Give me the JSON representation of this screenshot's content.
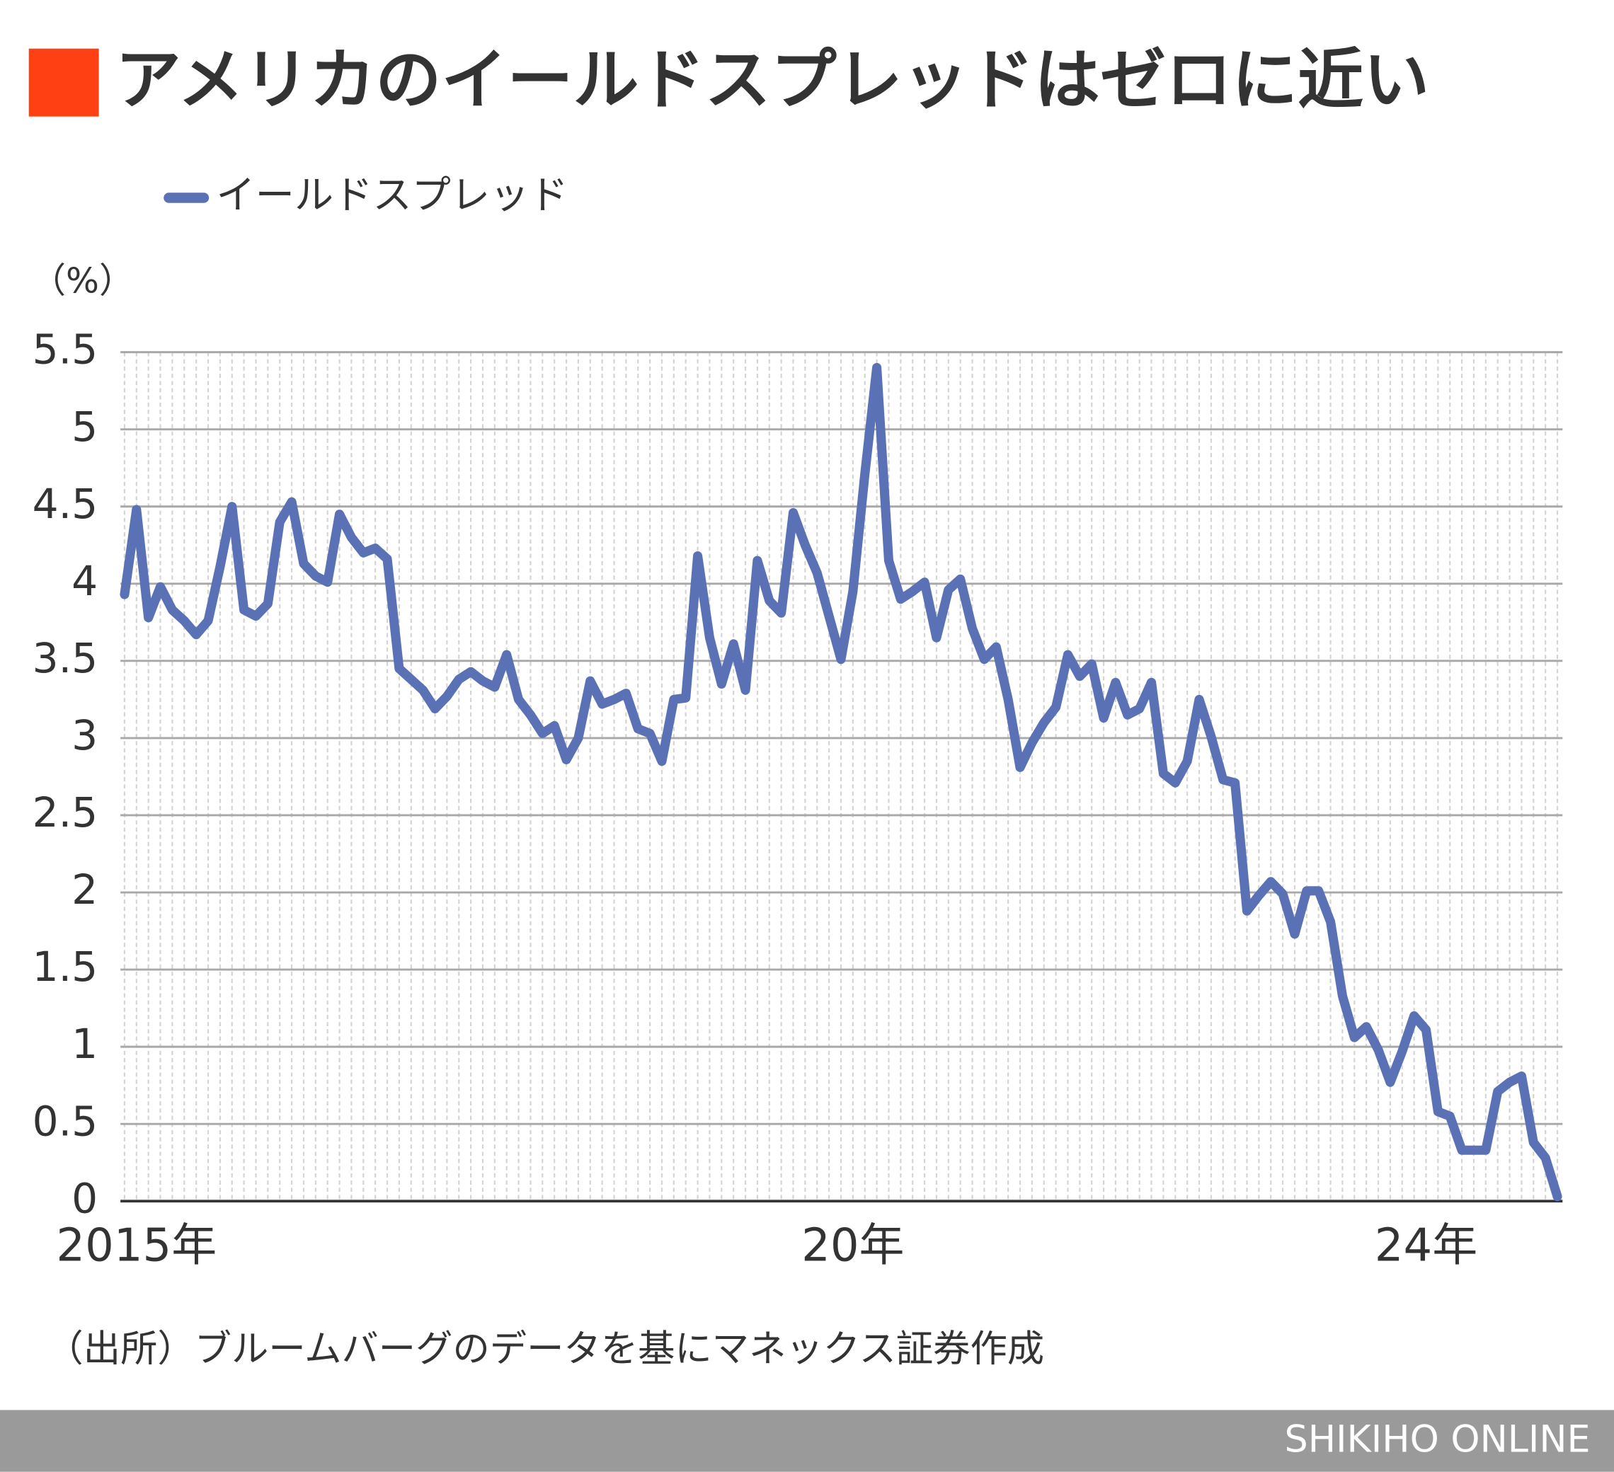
{
  "chart_data": {
    "type": "line",
    "title": "アメリカのイールドスプレッドはゼロに近い",
    "y_label": "（%）",
    "source": "（出所）ブルームバーグのデータを基にマネックス証券作成",
    "footer": "SHIKIHO ONLINE",
    "legend": "top-left",
    "grid": true,
    "ylim": [
      0,
      5.5
    ],
    "yticks": [
      0,
      0.5,
      1,
      1.5,
      2,
      2.5,
      3,
      3.5,
      4,
      4.5,
      5,
      5.5
    ],
    "categories": [
      null,
      "2015年",
      null,
      null,
      null,
      null,
      null,
      null,
      null,
      null,
      null,
      null,
      null,
      null,
      null,
      null,
      null,
      null,
      null,
      null,
      null,
      null,
      null,
      null,
      null,
      null,
      null,
      null,
      null,
      null,
      null,
      null,
      null,
      null,
      null,
      null,
      null,
      null,
      null,
      null,
      null,
      null,
      null,
      null,
      null,
      null,
      null,
      null,
      null,
      null,
      null,
      null,
      null,
      null,
      null,
      null,
      null,
      null,
      null,
      null,
      null,
      "20年",
      null,
      null,
      null,
      null,
      null,
      null,
      null,
      null,
      null,
      null,
      null,
      null,
      null,
      null,
      null,
      null,
      null,
      null,
      null,
      null,
      null,
      null,
      null,
      null,
      null,
      null,
      null,
      null,
      null,
      null,
      null,
      null,
      null,
      null,
      null,
      null,
      null,
      null,
      null,
      null,
      null,
      null,
      null,
      null,
      null,
      null,
      null,
      "24年",
      null,
      null,
      null,
      null,
      null,
      null,
      null,
      null,
      null,
      null,
      null
    ],
    "series": [
      {
        "name": "イールドスプレッド",
        "color": "#5a72b5",
        "values": [
          3.93,
          4.48,
          3.78,
          3.98,
          3.83,
          3.76,
          3.67,
          3.76,
          4.11,
          4.5,
          3.83,
          3.79,
          3.87,
          4.4,
          4.53,
          4.13,
          4.05,
          4.01,
          4.45,
          4.3,
          4.2,
          4.23,
          4.16,
          3.45,
          3.38,
          3.31,
          3.19,
          3.27,
          3.38,
          3.43,
          3.37,
          3.33,
          3.54,
          3.25,
          3.15,
          3.03,
          3.08,
          2.86,
          3.0,
          3.37,
          3.22,
          3.25,
          3.29,
          3.06,
          3.03,
          2.85,
          3.25,
          3.26,
          4.18,
          3.65,
          3.35,
          3.61,
          3.31,
          4.15,
          3.89,
          3.81,
          4.46,
          4.25,
          4.07,
          3.79,
          3.51,
          3.95,
          4.71,
          5.4,
          4.15,
          3.9,
          3.95,
          4.01,
          3.65,
          3.96,
          4.03,
          3.71,
          3.51,
          3.59,
          3.25,
          2.81,
          2.97,
          3.1,
          3.2,
          3.54,
          3.4,
          3.48,
          3.13,
          3.36,
          3.15,
          3.19,
          3.36,
          2.77,
          2.71,
          2.85,
          3.25,
          3.01,
          2.73,
          2.71,
          1.88,
          1.98,
          2.07,
          1.99,
          1.73,
          2.01,
          2.01,
          1.81,
          1.33,
          1.06,
          1.13,
          0.98,
          0.77,
          0.97,
          1.2,
          1.11,
          0.58,
          0.55,
          0.33,
          0.33,
          0.33,
          0.71,
          0.77,
          0.81,
          0.38,
          0.28,
          0.03
        ]
      }
    ]
  }
}
